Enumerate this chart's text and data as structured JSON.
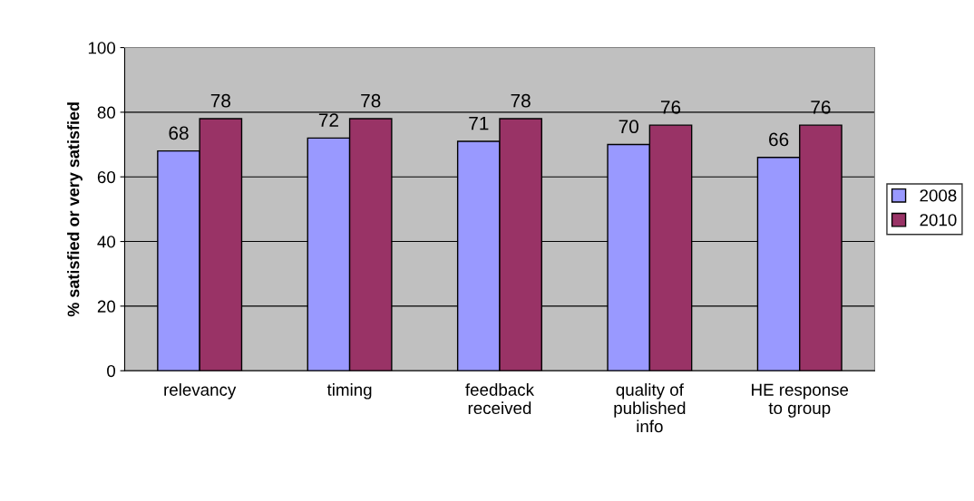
{
  "chart_data": {
    "type": "bar",
    "ylabel": "% satisfied or very satisfied",
    "categories": [
      "relevancy",
      "timing",
      "feedback\nreceived",
      "quality of\npublished\ninfo",
      "HE response\nto group"
    ],
    "series": [
      {
        "name": "2008",
        "color": "#9999ff",
        "values": [
          68,
          72,
          71,
          70,
          66
        ]
      },
      {
        "name": "2010",
        "color": "#993366",
        "values": [
          78,
          78,
          78,
          76,
          76
        ]
      }
    ],
    "ylim": [
      0,
      100
    ],
    "yticks": [
      0,
      20,
      40,
      60,
      80,
      100
    ],
    "grid": "y",
    "legend": "right",
    "data_labels": true
  }
}
